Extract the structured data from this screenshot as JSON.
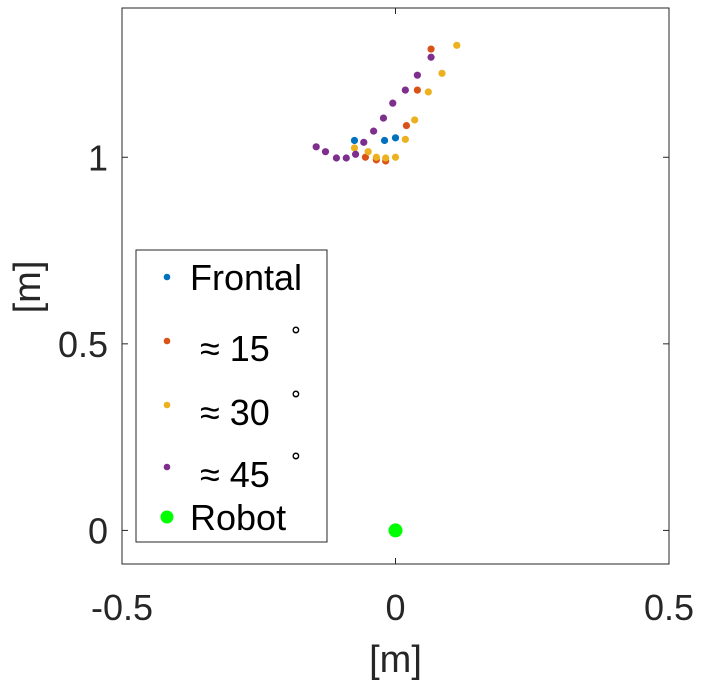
{
  "chart_data": {
    "type": "scatter",
    "title": "",
    "xlabel": "[m]",
    "ylabel": "[m]",
    "xlim": [
      -0.5,
      0.5
    ],
    "ylim": [
      -0.09,
      1.4
    ],
    "xticks": [
      {
        "value": -0.5,
        "label": "-0.5"
      },
      {
        "value": 0,
        "label": "0"
      },
      {
        "value": 0.5,
        "label": "0.5"
      }
    ],
    "yticks": [
      {
        "value": 0,
        "label": "0"
      },
      {
        "value": 0.5,
        "label": "0.5"
      },
      {
        "value": 1,
        "label": "1"
      }
    ],
    "grid": false,
    "legend_position": "bottom-left",
    "series": [
      {
        "name": "Frontal",
        "color": "#0072BD",
        "marker": "dot",
        "points": [
          [
            -0.075,
            1.045
          ],
          [
            -0.02,
            1.045
          ],
          [
            0.0,
            1.052
          ]
        ]
      },
      {
        "name_prefix": "≈ 15",
        "name_sup": "∘",
        "color": "#D95319",
        "marker": "dot",
        "points": [
          [
            -0.055,
            1.0
          ],
          [
            -0.035,
            0.993
          ],
          [
            -0.018,
            0.99
          ],
          [
            0.02,
            1.085
          ],
          [
            0.04,
            1.18
          ],
          [
            0.065,
            1.29
          ]
        ]
      },
      {
        "name_prefix": "≈ 30",
        "name_sup": "∘",
        "color": "#EDB120",
        "marker": "dot",
        "points": [
          [
            -0.075,
            1.025
          ],
          [
            -0.05,
            1.015
          ],
          [
            -0.035,
            1.0
          ],
          [
            -0.018,
            0.998
          ],
          [
            0.0,
            1.0
          ],
          [
            0.018,
            1.048
          ],
          [
            0.035,
            1.1
          ],
          [
            0.06,
            1.175
          ],
          [
            0.085,
            1.225
          ],
          [
            0.112,
            1.3
          ]
        ]
      },
      {
        "name_prefix": "≈ 45",
        "name_sup": "∘",
        "color": "#7E2F8E",
        "marker": "dot",
        "points": [
          [
            -0.145,
            1.028
          ],
          [
            -0.128,
            1.015
          ],
          [
            -0.108,
            0.998
          ],
          [
            -0.09,
            0.998
          ],
          [
            -0.073,
            1.008
          ],
          [
            -0.058,
            1.04
          ],
          [
            -0.04,
            1.07
          ],
          [
            -0.022,
            1.105
          ],
          [
            -0.005,
            1.145
          ],
          [
            0.018,
            1.18
          ],
          [
            0.04,
            1.22
          ],
          [
            0.065,
            1.268
          ]
        ]
      },
      {
        "name": "Robot",
        "color": "#00FF00",
        "marker": "big-dot",
        "points": [
          [
            0.0,
            0.0
          ]
        ]
      }
    ]
  }
}
